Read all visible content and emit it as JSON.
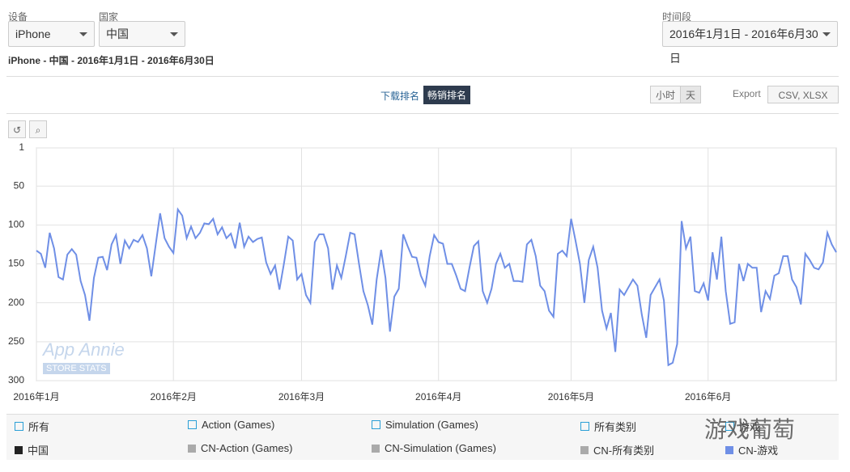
{
  "filters": {
    "device_label": "设备",
    "device": "iPhone",
    "country_label": "国家",
    "country": "中国",
    "period_label": "时间段",
    "period": "2016年1月1日 - 2016年6月30日"
  },
  "subtitle": "iPhone - 中国 - 2016年1月1日 - 2016年6月30日",
  "tabs": [
    "下载排名",
    "畅销排名"
  ],
  "granularity": [
    "小时",
    "天"
  ],
  "export": "Export",
  "export_formats": "CSV, XLSX",
  "watermark": {
    "brand": "App Annie",
    "sub": "STORE STATS",
    "overlay": "游戏葡萄"
  },
  "legend_top": [
    "所有",
    "Action (Games)",
    "Simulation (Games)",
    "所有类别",
    "游戏"
  ],
  "chart_data": {
    "type": "line",
    "color": "#6f8fe6",
    "name": "CN-游戏",
    "ylim": [
      1,
      300
    ],
    "y_reversed": true,
    "yticks": [
      1,
      50,
      100,
      150,
      200,
      250,
      300
    ],
    "grid": true,
    "xlim": [
      0,
      181
    ],
    "xticks": [
      {
        "value": 0,
        "label": "2016年1月"
      },
      {
        "value": 31,
        "label": "2016年2月"
      },
      {
        "value": 60,
        "label": "2016年3月"
      },
      {
        "value": 91,
        "label": "2016年4月"
      },
      {
        "value": 121,
        "label": "2016年5月"
      },
      {
        "value": 152,
        "label": "2016年6月"
      }
    ],
    "values": [
      133,
      137,
      155,
      110,
      130,
      167,
      170,
      138,
      131,
      138,
      172,
      190,
      223,
      168,
      142,
      141,
      158,
      125,
      113,
      150,
      120,
      130,
      119,
      122,
      113,
      130,
      166,
      125,
      85,
      117,
      128,
      136,
      80,
      88,
      117,
      102,
      117,
      110,
      98,
      99,
      92,
      112,
      103,
      117,
      111,
      130,
      97,
      128,
      115,
      122,
      118,
      116,
      148,
      163,
      152,
      183,
      150,
      115,
      120,
      170,
      163,
      190,
      200,
      122,
      112,
      112,
      130,
      183,
      152,
      168,
      140,
      110,
      112,
      150,
      185,
      203,
      228,
      170,
      132,
      168,
      237,
      192,
      182,
      112,
      127,
      141,
      142,
      165,
      178,
      140,
      113,
      122,
      124,
      150,
      150,
      165,
      182,
      185,
      155,
      127,
      121,
      185,
      200,
      182,
      150,
      137,
      155,
      150,
      172,
      172,
      173,
      125,
      119,
      140,
      178,
      185,
      210,
      218,
      137,
      133,
      140,
      92,
      120,
      150,
      200,
      145,
      128,
      155,
      210,
      233,
      213,
      263,
      183,
      190,
      180,
      170,
      178,
      215,
      245,
      190,
      180,
      170,
      197,
      280,
      277,
      253,
      95,
      130,
      115,
      185,
      187,
      175,
      197,
      135,
      170,
      115,
      185,
      227,
      225,
      150,
      172,
      150,
      155,
      155,
      212,
      185,
      195,
      165,
      162,
      140,
      140,
      170,
      180,
      202,
      137,
      145,
      155,
      157,
      148,
      110,
      125,
      135
    ]
  },
  "legend_bottom": [
    {
      "label": "中国",
      "color": "#222222"
    },
    {
      "label": "CN-Action (Games)",
      "color": "#aaaaaa"
    },
    {
      "label": "CN-Simulation (Games)",
      "color": "#aaaaaa"
    },
    {
      "label": "CN-所有类别",
      "color": "#aaaaaa"
    }
  ]
}
